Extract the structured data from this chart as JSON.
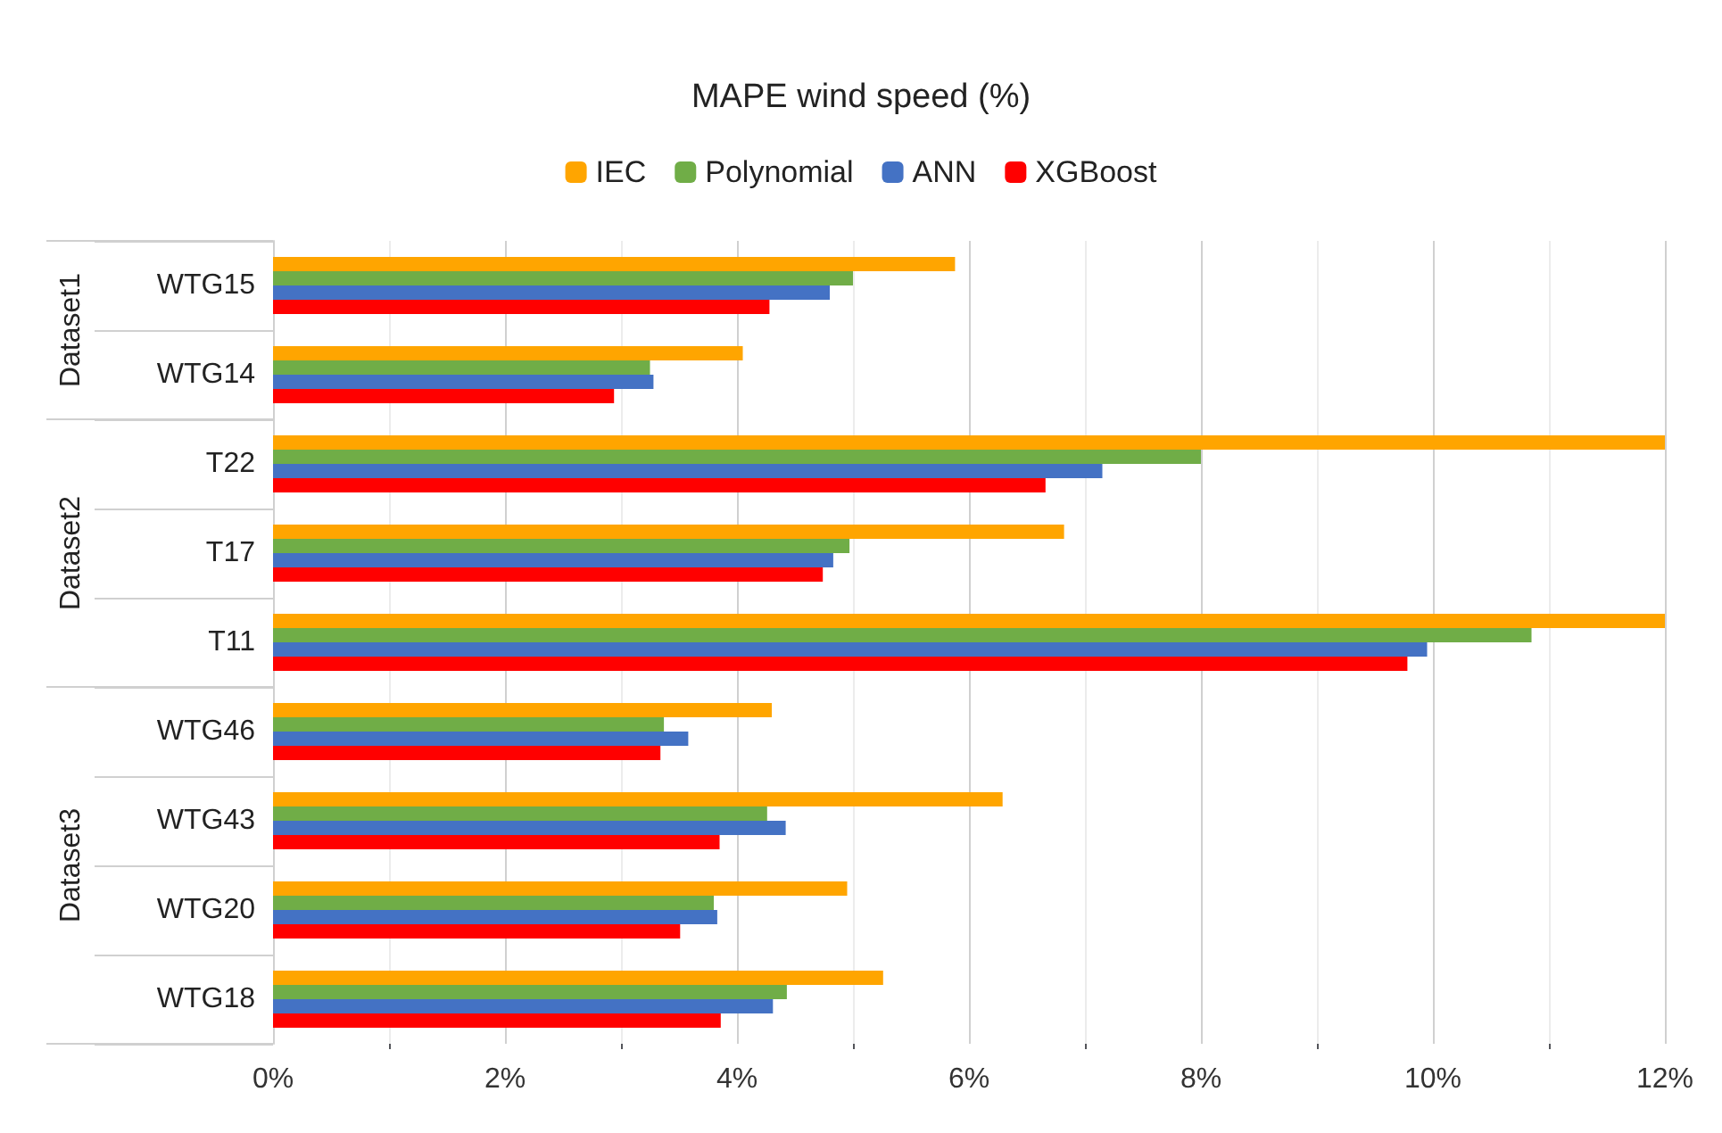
{
  "chart_data": {
    "type": "bar",
    "orientation": "horizontal",
    "title": "MAPE wind speed (%)",
    "categories": [
      "WTG15",
      "WTG14",
      "T22",
      "T17",
      "T11",
      "WTG46",
      "WTG43",
      "WTG20",
      "WTG18"
    ],
    "series": [
      {
        "name": "IEC",
        "color": "#ffa500",
        "values": [
          5.88,
          4.05,
          12,
          6.82,
          12,
          4.3,
          6.29,
          4.95,
          5.26
        ]
      },
      {
        "name": "Polynomial",
        "color": "#70ad47",
        "values": [
          5.0,
          3.25,
          8.0,
          4.97,
          10.85,
          3.37,
          4.26,
          3.8,
          4.43
        ]
      },
      {
        "name": "ANN",
        "color": "#4472c4",
        "values": [
          4.8,
          3.28,
          7.15,
          4.83,
          9.95,
          3.58,
          4.42,
          3.83,
          4.31
        ]
      },
      {
        "name": "XGBoost",
        "color": "#ff0000",
        "values": [
          4.28,
          2.94,
          6.66,
          4.74,
          9.78,
          3.34,
          3.85,
          3.51,
          3.86
        ]
      }
    ],
    "xlim": [
      0,
      12
    ],
    "xticks": [
      {
        "value": 0,
        "label": "0%"
      },
      {
        "value": 2,
        "label": "2%"
      },
      {
        "value": 4,
        "label": "4%"
      },
      {
        "value": 6,
        "label": "6%"
      },
      {
        "value": 8,
        "label": "8%"
      },
      {
        "value": 10,
        "label": "10%"
      },
      {
        "value": 12,
        "label": "12%"
      }
    ],
    "annotations": [
      "Dataset1",
      "Dataset2",
      "Dataset3"
    ],
    "grid": "x",
    "legend": "top"
  }
}
